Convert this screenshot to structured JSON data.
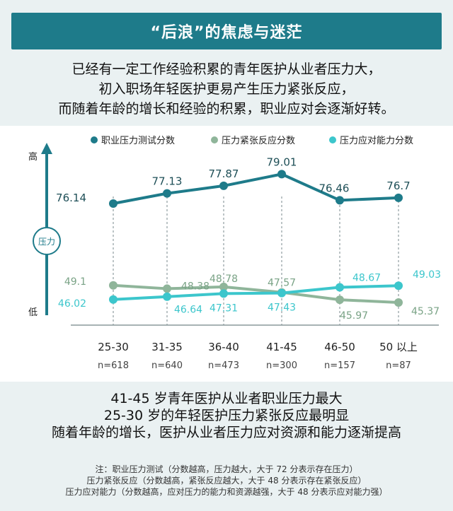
{
  "header": {
    "title": "“后浪”的焦虑与迷茫"
  },
  "intro": {
    "lines": [
      "已经有一定工作经验积累的青年医护从业者压力大，",
      "初入职场年轻医护更易产生压力紧张反应，",
      "而随着年龄的增长和经验的积累，职业应对会逐渐好转。"
    ]
  },
  "colors": {
    "banner": "#1e7b8a",
    "bg": "#eaf1f2",
    "series1": "#1e7b8a",
    "series2": "#8fb59a",
    "series3": "#3cc6cc"
  },
  "chart_data": {
    "type": "line",
    "y_axis": {
      "top_label": "高",
      "bottom_label": "低",
      "badge": "压力",
      "ylim": [
        40,
        82
      ]
    },
    "categories": [
      "25-30",
      "31-35",
      "36-40",
      "41-45",
      "46-50",
      "50 以上"
    ],
    "sample_sizes": [
      "n=618",
      "n=640",
      "n=473",
      "n=300",
      "n=157",
      "n=87"
    ],
    "series": [
      {
        "name": "职业压力测试分数",
        "color": "#1e7b8a",
        "values": [
          76.14,
          77.13,
          77.87,
          79.01,
          76.46,
          76.7
        ]
      },
      {
        "name": "压力紧张反应分数",
        "color": "#8fb59a",
        "values": [
          49.1,
          48.38,
          48.78,
          47.57,
          45.97,
          45.37
        ]
      },
      {
        "name": "压力应对能力分数",
        "color": "#3cc6cc",
        "values": [
          46.02,
          46.64,
          47.31,
          47.43,
          48.67,
          49.03
        ]
      }
    ],
    "grid": "vertical-dashed",
    "legend": "top"
  },
  "findings": {
    "lines": [
      "41-45 岁青年医护从业者职业压力最大",
      "25-30 岁的年轻医护压力紧张反应最明显",
      "随着年龄的增长，医护从业者压力应对资源和能力逐渐提高"
    ]
  },
  "notes": {
    "lines": [
      "注：职业压力测试（分数越高，压力越大，大于 72 分表示存在压力）",
      "压力紧张反应（分数越高，紧张反应越大，大于 48 分表示存在紧张反应）",
      "压力应对能力（分数越高，应对压力的能力和资源越强，大于 48 分表示应对能力强）"
    ]
  }
}
